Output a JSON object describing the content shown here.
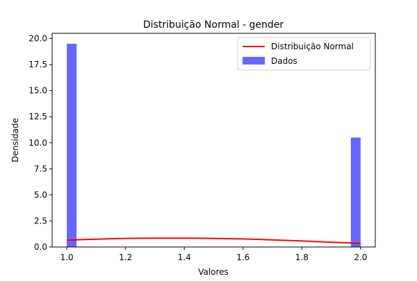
{
  "chart_data": {
    "type": "bar",
    "title": "Distribuição Normal - gender",
    "xlabel": "Valores",
    "ylabel": "Densidade",
    "xlim": [
      0.95,
      2.05
    ],
    "ylim": [
      0,
      20.5
    ],
    "xticks": [
      "1.0",
      "1.2",
      "1.4",
      "1.6",
      "1.8",
      "2.0"
    ],
    "xtick_values": [
      1.0,
      1.2,
      1.4,
      1.6,
      1.8,
      2.0
    ],
    "yticks": [
      "0.0",
      "2.5",
      "5.0",
      "7.5",
      "10.0",
      "12.5",
      "15.0",
      "17.5",
      "20.0"
    ],
    "ytick_values": [
      0.0,
      2.5,
      5.0,
      7.5,
      10.0,
      12.5,
      15.0,
      17.5,
      20.0
    ],
    "grid": false,
    "legend_position": "top-right",
    "series": [
      {
        "name": "Dados",
        "kind": "histogram",
        "color": "#6666ff",
        "bins": [
          {
            "x0": 1.0,
            "x1": 1.0333,
            "value": 19.5
          },
          {
            "x0": 1.9667,
            "x1": 2.0,
            "value": 10.5
          }
        ]
      },
      {
        "name": "Distribuição Normal",
        "kind": "line",
        "color": "#ff0000",
        "x": [
          1.0,
          1.05,
          1.1,
          1.15,
          1.2,
          1.25,
          1.3,
          1.35,
          1.4,
          1.45,
          1.5,
          1.55,
          1.6,
          1.65,
          1.7,
          1.75,
          1.8,
          1.85,
          1.9,
          1.95,
          2.0
        ],
        "y": [
          0.66,
          0.71,
          0.75,
          0.79,
          0.82,
          0.84,
          0.85,
          0.85,
          0.85,
          0.84,
          0.82,
          0.8,
          0.77,
          0.73,
          0.68,
          0.63,
          0.58,
          0.52,
          0.46,
          0.41,
          0.35
        ]
      }
    ],
    "legend": [
      "Distribuição Normal",
      "Dados"
    ]
  }
}
